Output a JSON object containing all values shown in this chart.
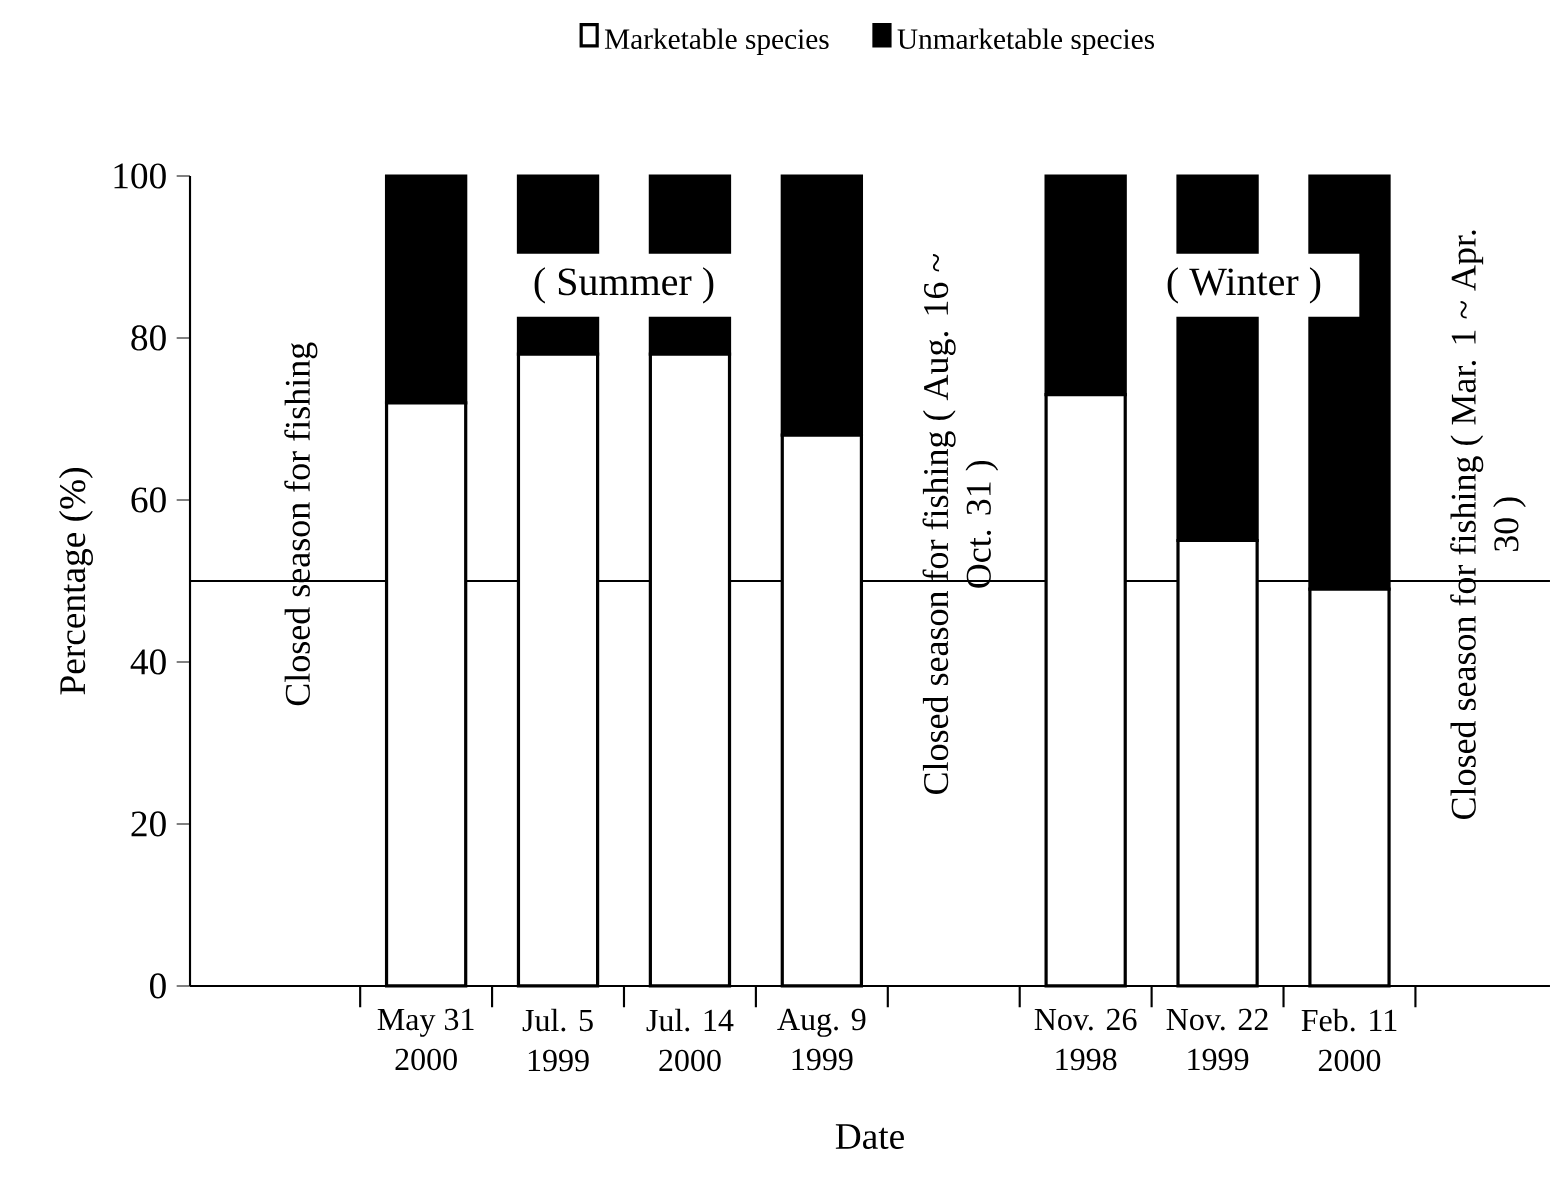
{
  "chart_data": {
    "type": "bar",
    "stacked": true,
    "xlabel": "Date",
    "ylabel": "Percentage (%)",
    "categories": [
      null,
      "May 31 2000",
      "Jul. 5 1999",
      "Jul. 14 2000",
      "Aug. 9 1999",
      null,
      "Nov. 26 1998",
      "Nov. 22 1999",
      "Feb. 11 2000",
      null
    ],
    "series": [
      {
        "name": "Marketable species",
        "color": "#ffffff",
        "values": [
          null,
          72,
          78,
          78,
          68,
          null,
          73,
          55,
          49,
          null
        ]
      },
      {
        "name": "Unmarketable species",
        "color": "#000000",
        "values": [
          null,
          28,
          22,
          22,
          32,
          null,
          27,
          45,
          51,
          null
        ]
      }
    ],
    "ylim": [
      0,
      100
    ],
    "yticks": [
      0,
      20,
      40,
      60,
      80,
      100
    ],
    "ref_lines": [
      {
        "axis": "y",
        "value": 50
      }
    ],
    "legend": "top",
    "annotations": [
      "Closed season for fishing",
      "Closed season for fishing ( Aug. 16 ~ Oct. 31 )",
      "Closed season for fishing ( Mar. 1 ~ Apr. 30 )",
      "( Summer )",
      "( Winter )"
    ]
  }
}
